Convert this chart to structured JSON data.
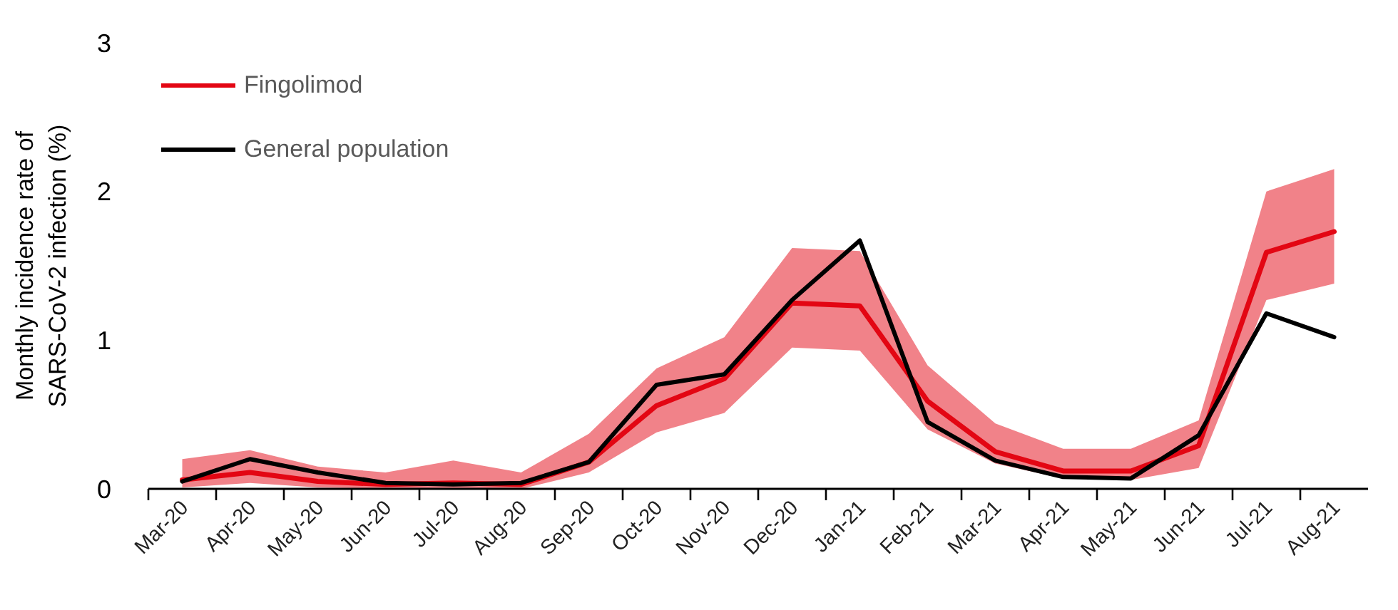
{
  "chart_data": {
    "type": "line",
    "ylabel": "Monthly incidence rate of SARS-CoV-2 infection (%)",
    "categories": [
      "Mar-20",
      "Apr-20",
      "May-20",
      "Jun-20",
      "Jul-20",
      "Aug-20",
      "Sep-20",
      "Oct-20",
      "Nov-20",
      "Dec-20",
      "Jan-21",
      "Feb-21",
      "Mar-21",
      "Apr-21",
      "May-21",
      "Jun-21",
      "Jul-21",
      "Aug-21"
    ],
    "ylim": [
      0,
      3
    ],
    "yticks": [
      0,
      1,
      2,
      3
    ],
    "grid": false,
    "legend": "top left",
    "marker": "none",
    "line_style": "solid",
    "series": [
      {
        "name": "Fingolimod",
        "color": "#e30613",
        "values": [
          0.06,
          0.11,
          0.05,
          0.03,
          0.04,
          0.03,
          0.18,
          0.56,
          0.74,
          1.25,
          1.23,
          0.59,
          0.25,
          0.12,
          0.12,
          0.29,
          1.59,
          1.73
        ],
        "lower": [
          0.01,
          0.04,
          0.01,
          0,
          0,
          0,
          0.11,
          0.38,
          0.51,
          0.95,
          0.93,
          0.4,
          0.17,
          0.07,
          0.06,
          0.14,
          1.27,
          1.38
        ],
        "upper": [
          0.2,
          0.26,
          0.15,
          0.11,
          0.19,
          0.11,
          0.37,
          0.81,
          1.02,
          1.62,
          1.6,
          0.83,
          0.44,
          0.27,
          0.27,
          0.46,
          2.0,
          2.15
        ]
      },
      {
        "name": "General population",
        "color": "#000000",
        "values": [
          0.05,
          0.2,
          0.11,
          0.04,
          0.03,
          0.04,
          0.18,
          0.7,
          0.77,
          1.27,
          1.67,
          0.45,
          0.19,
          0.08,
          0.07,
          0.36,
          1.18,
          1.02
        ]
      }
    ]
  }
}
